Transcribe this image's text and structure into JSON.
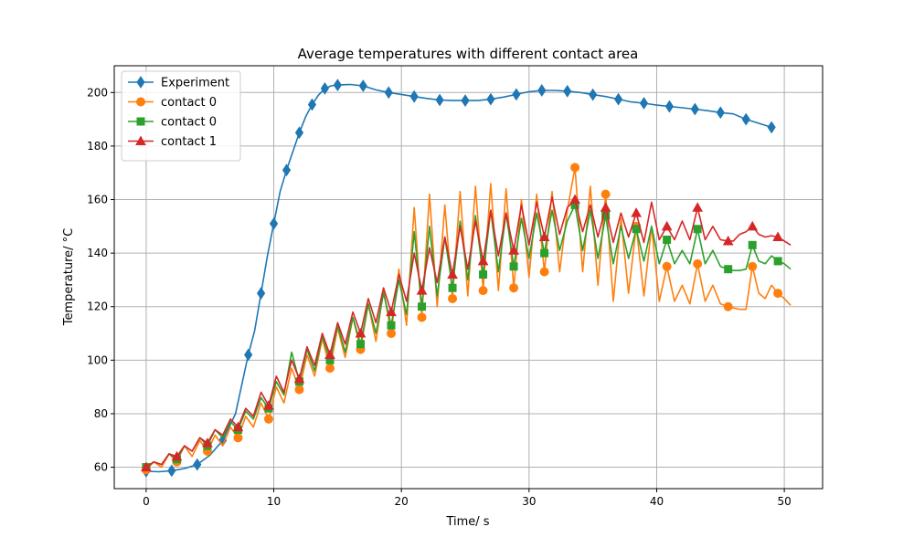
{
  "chart_data": {
    "type": "line",
    "title": "Average temperatures with different contact area",
    "xlabel": "Time/ s",
    "ylabel": "Temperature/ °C",
    "xlim": [
      -2.5,
      53.0
    ],
    "ylim": [
      52,
      210
    ],
    "xticks": [
      0,
      10,
      20,
      30,
      40,
      50
    ],
    "yticks": [
      60,
      80,
      100,
      120,
      140,
      160,
      180,
      200
    ],
    "grid": true,
    "legend_position": "top-left",
    "series": [
      {
        "name": "Experiment",
        "color": "#1f77b4",
        "marker": "diamond",
        "x": [
          0,
          1,
          2,
          3,
          4,
          5,
          6,
          7,
          8,
          8.5,
          9,
          9.5,
          10,
          10.5,
          11,
          11.5,
          12,
          12.5,
          13,
          13.5,
          14,
          14.5,
          15,
          16,
          17,
          18,
          19,
          20,
          21,
          22,
          23,
          24,
          25,
          26,
          27,
          28,
          29,
          30,
          31,
          32,
          33,
          34,
          35,
          36,
          37,
          38,
          39,
          40,
          41,
          42,
          43,
          44,
          45,
          46,
          47,
          48,
          49
        ],
        "y": [
          58.5,
          58.3,
          58.7,
          59.5,
          61,
          64.5,
          70,
          80,
          102,
          111,
          125,
          139,
          151,
          163,
          171,
          178,
          185,
          191,
          195.5,
          199,
          201.5,
          202.5,
          202.8,
          203,
          202.5,
          201,
          200,
          199.3,
          198.5,
          197.8,
          197.2,
          197,
          197,
          197,
          197.5,
          198.3,
          199.3,
          200.3,
          200.8,
          200.8,
          200.5,
          200,
          199.2,
          198.5,
          197.5,
          196.5,
          196,
          195.3,
          194.8,
          194.3,
          193.8,
          193.2,
          192.5,
          192,
          190,
          188.5,
          187
        ]
      },
      {
        "name": "contact 0",
        "color": "#ff7f0e",
        "marker": "circle",
        "x": [
          0,
          0.6,
          1.2,
          1.8,
          2.4,
          3.0,
          3.6,
          4.2,
          4.8,
          5.4,
          6.0,
          6.6,
          7.2,
          7.8,
          8.4,
          9.0,
          9.6,
          10.2,
          10.8,
          11.4,
          12.0,
          12.6,
          13.2,
          13.8,
          14.4,
          15.0,
          15.6,
          16.2,
          16.8,
          17.4,
          18.0,
          18.6,
          19.2,
          19.8,
          20.4,
          21.0,
          21.6,
          22.2,
          22.8,
          23.4,
          24.0,
          24.6,
          25.2,
          25.8,
          26.4,
          27.0,
          27.6,
          28.2,
          28.8,
          29.4,
          30.0,
          30.6,
          31.2,
          31.8,
          32.4,
          33.0,
          33.6,
          34.2,
          34.8,
          35.4,
          36.0,
          36.6,
          37.2,
          37.8,
          38.4,
          39.0,
          39.6,
          40.2,
          40.8,
          41.4,
          42.0,
          42.6,
          43.2,
          43.8,
          44.4,
          45.0,
          45.6,
          46.0,
          46.5,
          47.0,
          47.5,
          48.0,
          48.5,
          49.0,
          49.5,
          50.0,
          50.5
        ],
        "y": [
          59,
          62,
          60,
          65,
          62,
          68,
          64,
          70,
          66,
          72,
          68,
          75,
          71,
          79,
          75,
          84,
          78,
          90,
          84,
          97,
          89,
          102,
          94,
          108,
          97,
          112,
          101,
          116,
          104,
          121,
          107,
          126,
          110,
          134,
          113,
          157,
          116,
          162,
          120,
          158,
          123,
          163,
          124,
          165,
          126,
          166,
          126,
          164,
          127,
          160,
          131,
          162,
          133,
          163,
          133,
          156,
          172,
          133,
          165,
          128,
          162,
          122,
          153,
          125,
          150,
          124,
          150,
          122,
          135,
          122,
          128,
          121,
          136,
          122,
          128,
          121,
          120,
          119.5,
          119,
          119,
          135,
          125,
          123,
          128,
          125,
          123,
          120.5
        ]
      },
      {
        "name": "contact 0",
        "color": "#2ca02c",
        "marker": "square",
        "x": [
          0,
          0.6,
          1.2,
          1.8,
          2.4,
          3.0,
          3.6,
          4.2,
          4.8,
          5.4,
          6.0,
          6.6,
          7.2,
          7.8,
          8.4,
          9.0,
          9.6,
          10.2,
          10.8,
          11.4,
          12.0,
          12.6,
          13.2,
          13.8,
          14.4,
          15.0,
          15.6,
          16.2,
          16.8,
          17.4,
          18.0,
          18.6,
          19.2,
          19.8,
          20.4,
          21.0,
          21.6,
          22.2,
          22.8,
          23.4,
          24.0,
          24.6,
          25.2,
          25.8,
          26.4,
          27.0,
          27.6,
          28.2,
          28.8,
          29.4,
          30.0,
          30.6,
          31.2,
          31.8,
          32.4,
          33.0,
          33.6,
          34.2,
          34.8,
          35.4,
          36.0,
          36.6,
          37.2,
          37.8,
          38.4,
          39.0,
          39.6,
          40.2,
          40.8,
          41.4,
          42.0,
          42.6,
          43.2,
          43.8,
          44.4,
          45.0,
          45.6,
          46.0,
          46.5,
          47.0,
          47.5,
          48.0,
          48.5,
          49.0,
          49.5,
          50.0,
          50.5
        ],
        "y": [
          60,
          62,
          61,
          65,
          63,
          68,
          66,
          71,
          68,
          74,
          71,
          77,
          74,
          81,
          78,
          86,
          82,
          92,
          87,
          103,
          92,
          104,
          96,
          109,
          100,
          113,
          103,
          116,
          106,
          121,
          110,
          125,
          113,
          130,
          117,
          148,
          120,
          150,
          124,
          146,
          127,
          152,
          130,
          154,
          132,
          156,
          133,
          155,
          135,
          153,
          138,
          155,
          140,
          156,
          141,
          152,
          158,
          141,
          156,
          138,
          154,
          136,
          150,
          138,
          149,
          137,
          150,
          136,
          145,
          136,
          141,
          136,
          149,
          136,
          141,
          135,
          134,
          133.5,
          133.5,
          134,
          143,
          137,
          136,
          139,
          137,
          136,
          134
        ]
      },
      {
        "name": "contact 1",
        "color": "#d62728",
        "marker": "triangle",
        "x": [
          0,
          0.6,
          1.2,
          1.8,
          2.4,
          3.0,
          3.6,
          4.2,
          4.8,
          5.4,
          6.0,
          6.6,
          7.2,
          7.8,
          8.4,
          9.0,
          9.6,
          10.2,
          10.8,
          11.4,
          12.0,
          12.6,
          13.2,
          13.8,
          14.4,
          15.0,
          15.6,
          16.2,
          16.8,
          17.4,
          18.0,
          18.6,
          19.2,
          19.8,
          20.4,
          21.0,
          21.6,
          22.2,
          22.8,
          23.4,
          24.0,
          24.6,
          25.2,
          25.8,
          26.4,
          27.0,
          27.6,
          28.2,
          28.8,
          29.4,
          30.0,
          30.6,
          31.2,
          31.8,
          32.4,
          33.0,
          33.6,
          34.2,
          34.8,
          35.4,
          36.0,
          36.6,
          37.2,
          37.8,
          38.4,
          39.0,
          39.6,
          40.2,
          40.8,
          41.4,
          42.0,
          42.6,
          43.2,
          43.8,
          44.4,
          45.0,
          45.6,
          46.0,
          46.5,
          47.0,
          47.5,
          48.0,
          48.5,
          49.0,
          49.5,
          50.0,
          50.5
        ],
        "y": [
          60,
          62,
          61,
          65,
          64,
          68,
          66,
          71,
          69,
          74,
          72,
          78,
          75,
          82,
          79,
          88,
          83,
          94,
          88,
          100,
          93,
          105,
          98,
          110,
          102,
          114,
          106,
          118,
          110,
          123,
          114,
          127,
          118,
          132,
          122,
          140,
          126,
          142,
          129,
          146,
          132,
          150,
          134,
          152,
          137,
          156,
          139,
          155,
          141,
          158,
          143,
          159,
          146,
          161,
          147,
          157,
          160,
          148,
          158,
          146,
          157,
          144,
          155,
          146,
          155,
          144,
          159,
          145,
          150,
          145,
          152,
          145,
          157,
          145,
          150,
          145,
          144.5,
          144.5,
          147,
          148,
          150,
          147,
          146,
          146.5,
          146,
          144.5,
          143
        ]
      }
    ]
  }
}
